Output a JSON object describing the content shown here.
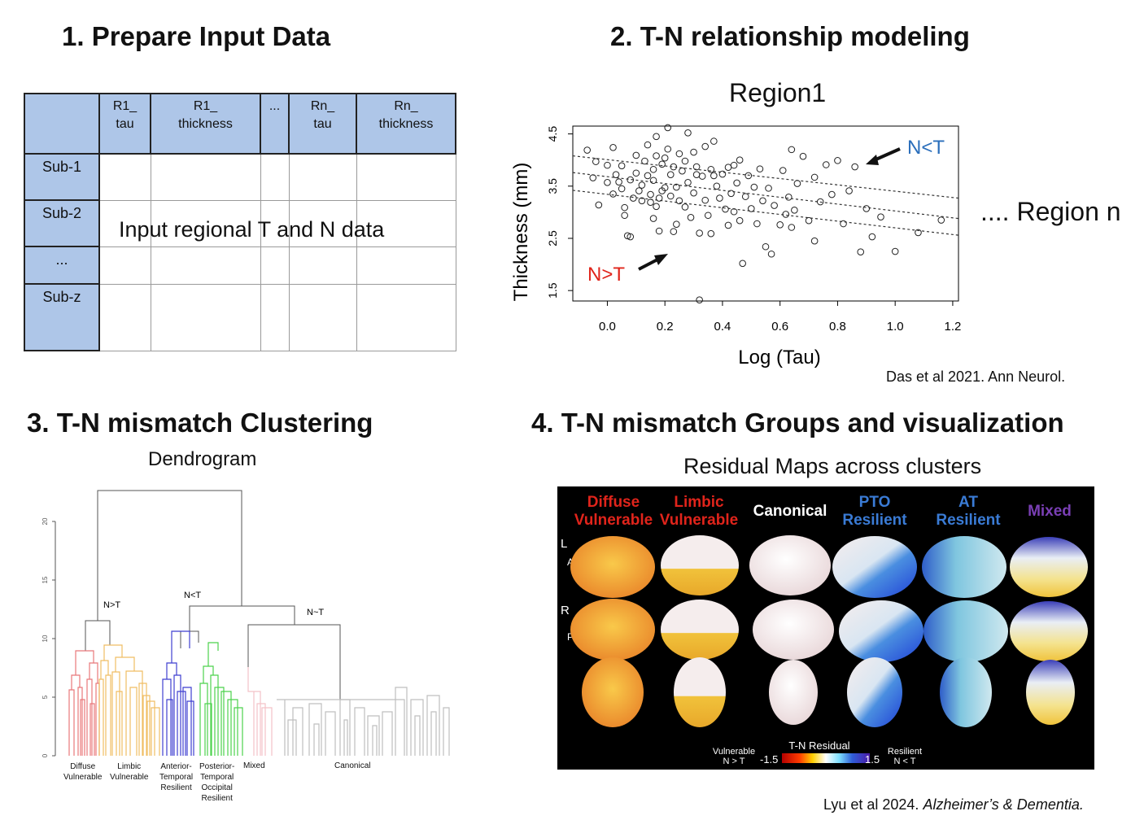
{
  "panel1": {
    "heading": "1. Prepare Input Data",
    "columns": [
      "",
      "R1_\ntau",
      "R1_\nthickness",
      "...",
      "Rn_\ntau",
      "Rn_\nthickness"
    ],
    "rows": [
      "Sub-1",
      "Sub-2",
      "...",
      "Sub-z"
    ],
    "overlay_text": "Input regional T and N data"
  },
  "panel2": {
    "heading": "2. T-N relationship modeling",
    "region_title": "Region1",
    "region_n": ".... Region n",
    "citation": "Das et al 2021. Ann Neurol.",
    "annotation_nlt": "N<T",
    "annotation_ngt": "N>T",
    "colors": {
      "nlt": "#2a6ebb",
      "ngt": "#e0241b"
    }
  },
  "chart_data": {
    "type": "scatter",
    "xlabel": "Log (Tau)",
    "ylabel": "Thickness (mm)",
    "xlim": [
      -0.12,
      1.22
    ],
    "ylim": [
      1.3,
      4.65
    ],
    "x_ticks": [
      0.0,
      0.2,
      0.4,
      0.6,
      0.8,
      1.0,
      1.2
    ],
    "y_ticks": [
      1.5,
      2.5,
      3.5,
      4.5
    ],
    "x_tick_labels": [
      "0.0",
      "0.2",
      "0.4",
      "0.6",
      "0.8",
      "1.0",
      "1.2"
    ],
    "y_tick_labels": [
      "1.5",
      "2.5",
      "3.5",
      "4.5"
    ],
    "grid": false,
    "regression_lines": [
      {
        "x": [
          -0.12,
          1.22
        ],
        "y": [
          4.08,
          3.27
        ]
      },
      {
        "x": [
          -0.12,
          1.22
        ],
        "y": [
          3.76,
          2.88
        ]
      },
      {
        "x": [
          -0.12,
          1.22
        ],
        "y": [
          3.42,
          2.56
        ]
      }
    ],
    "points": [
      [
        -0.07,
        4.19
      ],
      [
        -0.05,
        3.66
      ],
      [
        -0.04,
        3.97
      ],
      [
        -0.03,
        3.14
      ],
      [
        0.0,
        3.9
      ],
      [
        0.0,
        3.57
      ],
      [
        0.02,
        4.24
      ],
      [
        0.02,
        3.35
      ],
      [
        0.03,
        3.72
      ],
      [
        0.04,
        3.58
      ],
      [
        0.05,
        3.45
      ],
      [
        0.05,
        3.89
      ],
      [
        0.06,
        3.09
      ],
      [
        0.06,
        2.94
      ],
      [
        0.07,
        2.55
      ],
      [
        0.08,
        2.53
      ],
      [
        0.08,
        3.62
      ],
      [
        0.09,
        3.27
      ],
      [
        0.1,
        3.75
      ],
      [
        0.1,
        4.09
      ],
      [
        0.11,
        3.41
      ],
      [
        0.12,
        3.22
      ],
      [
        0.12,
        3.52
      ],
      [
        0.13,
        3.98
      ],
      [
        0.14,
        4.29
      ],
      [
        0.14,
        3.7
      ],
      [
        0.15,
        3.34
      ],
      [
        0.15,
        3.19
      ],
      [
        0.16,
        3.82
      ],
      [
        0.16,
        3.61
      ],
      [
        0.16,
        2.88
      ],
      [
        0.17,
        4.45
      ],
      [
        0.17,
        3.11
      ],
      [
        0.17,
        4.08
      ],
      [
        0.18,
        3.27
      ],
      [
        0.18,
        2.64
      ],
      [
        0.19,
        3.92
      ],
      [
        0.19,
        3.41
      ],
      [
        0.2,
        4.04
      ],
      [
        0.2,
        3.47
      ],
      [
        0.21,
        4.62
      ],
      [
        0.21,
        4.21
      ],
      [
        0.22,
        3.72
      ],
      [
        0.22,
        3.31
      ],
      [
        0.23,
        2.63
      ],
      [
        0.23,
        3.87
      ],
      [
        0.24,
        3.48
      ],
      [
        0.24,
        2.77
      ],
      [
        0.25,
        4.12
      ],
      [
        0.25,
        3.22
      ],
      [
        0.26,
        3.79
      ],
      [
        0.27,
        3.98
      ],
      [
        0.27,
        3.1
      ],
      [
        0.28,
        4.52
      ],
      [
        0.28,
        3.57
      ],
      [
        0.29,
        2.9
      ],
      [
        0.3,
        4.15
      ],
      [
        0.3,
        3.37
      ],
      [
        0.31,
        3.87
      ],
      [
        0.31,
        3.72
      ],
      [
        0.32,
        2.6
      ],
      [
        0.32,
        1.32
      ],
      [
        0.33,
        3.69
      ],
      [
        0.34,
        4.26
      ],
      [
        0.34,
        3.23
      ],
      [
        0.35,
        2.94
      ],
      [
        0.36,
        3.82
      ],
      [
        0.36,
        2.59
      ],
      [
        0.37,
        4.36
      ],
      [
        0.37,
        3.7
      ],
      [
        0.38,
        3.5
      ],
      [
        0.39,
        3.27
      ],
      [
        0.4,
        3.73
      ],
      [
        0.41,
        3.06
      ],
      [
        0.42,
        3.86
      ],
      [
        0.42,
        2.75
      ],
      [
        0.43,
        3.36
      ],
      [
        0.44,
        3.9
      ],
      [
        0.44,
        3.01
      ],
      [
        0.45,
        3.56
      ],
      [
        0.46,
        4.0
      ],
      [
        0.46,
        2.84
      ],
      [
        0.47,
        2.02
      ],
      [
        0.48,
        3.3
      ],
      [
        0.49,
        3.7
      ],
      [
        0.5,
        3.07
      ],
      [
        0.51,
        3.48
      ],
      [
        0.52,
        2.78
      ],
      [
        0.53,
        3.83
      ],
      [
        0.54,
        3.22
      ],
      [
        0.55,
        2.34
      ],
      [
        0.56,
        3.46
      ],
      [
        0.57,
        2.2
      ],
      [
        0.58,
        3.13
      ],
      [
        0.6,
        2.76
      ],
      [
        0.61,
        3.8
      ],
      [
        0.62,
        2.96
      ],
      [
        0.63,
        3.29
      ],
      [
        0.64,
        4.2
      ],
      [
        0.64,
        2.71
      ],
      [
        0.65,
        3.04
      ],
      [
        0.66,
        3.55
      ],
      [
        0.68,
        4.07
      ],
      [
        0.7,
        2.84
      ],
      [
        0.72,
        3.67
      ],
      [
        0.72,
        2.45
      ],
      [
        0.74,
        3.2
      ],
      [
        0.76,
        3.91
      ],
      [
        0.78,
        3.34
      ],
      [
        0.8,
        3.99
      ],
      [
        0.82,
        2.78
      ],
      [
        0.84,
        3.41
      ],
      [
        0.86,
        3.87
      ],
      [
        0.88,
        2.24
      ],
      [
        0.9,
        3.07
      ],
      [
        0.92,
        2.53
      ],
      [
        0.95,
        2.91
      ],
      [
        1.0,
        2.25
      ],
      [
        1.08,
        2.61
      ],
      [
        1.16,
        2.85
      ]
    ]
  },
  "panel3": {
    "heading": "3. T-N mismatch Clustering",
    "subtitle": "Dendrogram",
    "y_ticks": [
      "0",
      "5",
      "10",
      "15",
      "20"
    ],
    "node_labels": [
      "N>T",
      "N<T",
      "N~T"
    ],
    "clusters": [
      {
        "name": "Diffuse\nVulnerable",
        "color": "#e8787a"
      },
      {
        "name": "Limbic\nVulnerable",
        "color": "#f0bd63"
      },
      {
        "name": "Anterior-\nTemporal\nResilient",
        "color": "#3f3fd0"
      },
      {
        "name": "Posterior-\nTemporal\nOccipital\nResilient",
        "color": "#4cd24c"
      },
      {
        "name": "Mixed",
        "color": "#f4c2c8"
      },
      {
        "name": "Canonical",
        "color": "#bfbfbf"
      }
    ]
  },
  "panel4": {
    "heading": "4. T-N mismatch Groups and visualization",
    "subtitle": "Residual Maps across clusters",
    "groups": [
      {
        "name": "Diffuse\nVulnerable",
        "color": "#e0241b"
      },
      {
        "name": "Limbic\nVulnerable",
        "color": "#e0241b"
      },
      {
        "name": "Canonical",
        "color": "#ffffff"
      },
      {
        "name": "PTO\nResilient",
        "color": "#3a7bd5"
      },
      {
        "name": "AT\nResilient",
        "color": "#3a7bd5"
      },
      {
        "name": "Mixed",
        "color": "#7a3fb5"
      }
    ],
    "side_labels": [
      "L",
      "A",
      "R",
      "P"
    ],
    "colorbar_title": "T-N Residual",
    "colorbar_min": "-1.5",
    "colorbar_max": "1.5",
    "left_label": "Vulnerable\nN > T",
    "right_label": "Resilient\nN < T",
    "citation_plain": "Lyu et al 2024. ",
    "citation_italic": "Alzheimer’s & Dementia."
  }
}
